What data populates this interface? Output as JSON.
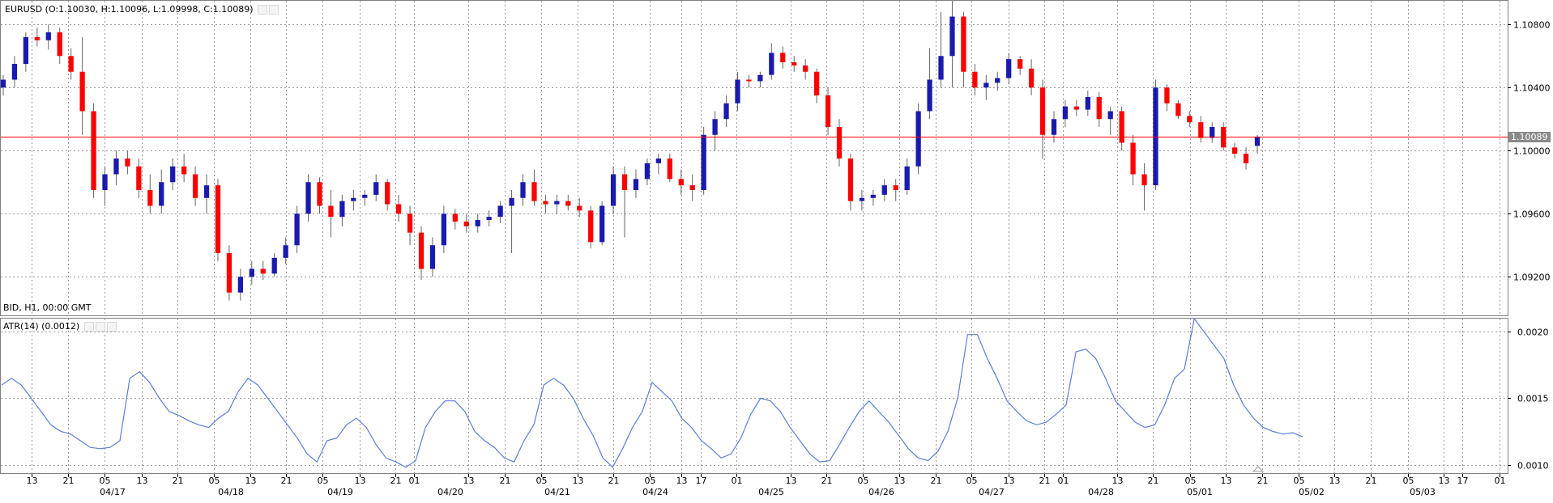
{
  "main_header": {
    "symbol": "EURUSD",
    "ohlc": "(O:1.10030, H:1.10096, L:1.09998, C:1.10089)"
  },
  "main_footer": "BID, H1, 00:00 GMT",
  "current_price_label": "1.10089",
  "indicator_header": "ATR(14) (0.0012)",
  "colors": {
    "up": "#1a1aaf",
    "down": "#ff0000",
    "atr": "#5b7fd6",
    "price_line": "#ff0000",
    "grid": "#9a9a9a"
  },
  "chart_data": [
    {
      "type": "candlestick",
      "title": "EURUSD (O:1.10030, H:1.10096, L:1.09998, C:1.10089)",
      "ylim": [
        1.0895,
        1.1095
      ],
      "y_ticks": [
        "1.10800",
        "1.10400",
        "1.10000",
        "1.09600",
        "1.09200"
      ],
      "current_price": 1.10089,
      "candles": [
        {
          "o": 1.104,
          "h": 1.1048,
          "l": 1.1035,
          "c": 1.1045
        },
        {
          "o": 1.1045,
          "h": 1.106,
          "l": 1.104,
          "c": 1.1055
        },
        {
          "o": 1.1055,
          "h": 1.1075,
          "l": 1.105,
          "c": 1.1072
        },
        {
          "o": 1.1072,
          "h": 1.1078,
          "l": 1.1066,
          "c": 1.107
        },
        {
          "o": 1.107,
          "h": 1.108,
          "l": 1.1064,
          "c": 1.1075
        },
        {
          "o": 1.1075,
          "h": 1.1078,
          "l": 1.1055,
          "c": 1.106
        },
        {
          "o": 1.106,
          "h": 1.1065,
          "l": 1.1045,
          "c": 1.105
        },
        {
          "o": 1.105,
          "h": 1.1072,
          "l": 1.101,
          "c": 1.1025
        },
        {
          "o": 1.1025,
          "h": 1.103,
          "l": 1.097,
          "c": 1.0975
        },
        {
          "o": 1.0975,
          "h": 1.099,
          "l": 1.0965,
          "c": 1.0985
        },
        {
          "o": 1.0985,
          "h": 1.1,
          "l": 1.0978,
          "c": 1.0995
        },
        {
          "o": 1.0995,
          "h": 1.1,
          "l": 1.0985,
          "c": 1.099
        },
        {
          "o": 1.099,
          "h": 1.0995,
          "l": 1.097,
          "c": 1.0975
        },
        {
          "o": 1.0975,
          "h": 1.0985,
          "l": 1.096,
          "c": 1.0965
        },
        {
          "o": 1.0965,
          "h": 1.0988,
          "l": 1.096,
          "c": 1.098
        },
        {
          "o": 1.098,
          "h": 1.0995,
          "l": 1.0975,
          "c": 1.099
        },
        {
          "o": 1.099,
          "h": 1.0998,
          "l": 1.098,
          "c": 1.0985
        },
        {
          "o": 1.0985,
          "h": 1.099,
          "l": 1.0965,
          "c": 1.097
        },
        {
          "o": 1.097,
          "h": 1.0985,
          "l": 1.096,
          "c": 1.0978
        },
        {
          "o": 1.0978,
          "h": 1.0982,
          "l": 1.093,
          "c": 1.0935
        },
        {
          "o": 1.0935,
          "h": 1.094,
          "l": 1.0905,
          "c": 1.091
        },
        {
          "o": 1.091,
          "h": 1.0925,
          "l": 1.0905,
          "c": 1.092
        },
        {
          "o": 1.092,
          "h": 1.093,
          "l": 1.0915,
          "c": 1.0925
        },
        {
          "o": 1.0925,
          "h": 1.093,
          "l": 1.0918,
          "c": 1.0922
        },
        {
          "o": 1.0922,
          "h": 1.0935,
          "l": 1.092,
          "c": 1.0932
        },
        {
          "o": 1.0932,
          "h": 1.0945,
          "l": 1.0928,
          "c": 1.094
        },
        {
          "o": 1.094,
          "h": 1.0965,
          "l": 1.0935,
          "c": 1.096
        },
        {
          "o": 1.096,
          "h": 1.0985,
          "l": 1.0955,
          "c": 1.098
        },
        {
          "o": 1.098,
          "h": 1.0983,
          "l": 1.096,
          "c": 1.0965
        },
        {
          "o": 1.0965,
          "h": 1.0975,
          "l": 1.0945,
          "c": 1.0958
        },
        {
          "o": 1.0958,
          "h": 1.0972,
          "l": 1.0952,
          "c": 1.0968
        },
        {
          "o": 1.0968,
          "h": 1.0975,
          "l": 1.0962,
          "c": 1.097
        },
        {
          "o": 1.097,
          "h": 1.0975,
          "l": 1.0965,
          "c": 1.0972
        },
        {
          "o": 1.0972,
          "h": 1.0985,
          "l": 1.0968,
          "c": 1.098
        },
        {
          "o": 1.098,
          "h": 1.0982,
          "l": 1.0962,
          "c": 1.0966
        },
        {
          "o": 1.0966,
          "h": 1.0972,
          "l": 1.0955,
          "c": 1.096
        },
        {
          "o": 1.096,
          "h": 1.0965,
          "l": 1.094,
          "c": 1.0948
        },
        {
          "o": 1.0948,
          "h": 1.0952,
          "l": 1.0918,
          "c": 1.0925
        },
        {
          "o": 1.0925,
          "h": 1.0945,
          "l": 1.092,
          "c": 1.094
        },
        {
          "o": 1.094,
          "h": 1.0965,
          "l": 1.0935,
          "c": 1.096
        },
        {
          "o": 1.096,
          "h": 1.0963,
          "l": 1.095,
          "c": 1.0955
        },
        {
          "o": 1.0955,
          "h": 1.096,
          "l": 1.0948,
          "c": 1.0952
        },
        {
          "o": 1.0952,
          "h": 1.096,
          "l": 1.0948,
          "c": 1.0956
        },
        {
          "o": 1.0956,
          "h": 1.0962,
          "l": 1.0952,
          "c": 1.0958
        },
        {
          "o": 1.0958,
          "h": 1.0968,
          "l": 1.0954,
          "c": 1.0965
        },
        {
          "o": 1.0965,
          "h": 1.0975,
          "l": 1.0935,
          "c": 1.097
        },
        {
          "o": 1.097,
          "h": 1.0985,
          "l": 1.0965,
          "c": 1.098
        },
        {
          "o": 1.098,
          "h": 1.0988,
          "l": 1.0965,
          "c": 1.0968
        },
        {
          "o": 1.0968,
          "h": 1.0972,
          "l": 1.096,
          "c": 1.0966
        },
        {
          "o": 1.0966,
          "h": 1.0972,
          "l": 1.096,
          "c": 1.0968
        },
        {
          "o": 1.0968,
          "h": 1.0972,
          "l": 1.0962,
          "c": 1.0965
        },
        {
          "o": 1.0965,
          "h": 1.097,
          "l": 1.0958,
          "c": 1.0962
        },
        {
          "o": 1.0962,
          "h": 1.0965,
          "l": 1.0938,
          "c": 1.0942
        },
        {
          "o": 1.0942,
          "h": 1.0968,
          "l": 1.094,
          "c": 1.0965
        },
        {
          "o": 1.0965,
          "h": 1.099,
          "l": 1.096,
          "c": 1.0985
        },
        {
          "o": 1.0985,
          "h": 1.099,
          "l": 1.0945,
          "c": 1.0975
        },
        {
          "o": 1.0975,
          "h": 1.0988,
          "l": 1.097,
          "c": 1.0982
        },
        {
          "o": 1.0982,
          "h": 1.0995,
          "l": 1.0978,
          "c": 1.0992
        },
        {
          "o": 1.0992,
          "h": 1.0998,
          "l": 1.0985,
          "c": 1.0995
        },
        {
          "o": 1.0995,
          "h": 1.0998,
          "l": 1.098,
          "c": 1.0982
        },
        {
          "o": 1.0982,
          "h": 1.0988,
          "l": 1.0972,
          "c": 1.0978
        },
        {
          "o": 1.0978,
          "h": 1.0985,
          "l": 1.0968,
          "c": 1.0975
        },
        {
          "o": 1.0975,
          "h": 1.1015,
          "l": 1.0972,
          "c": 1.101
        },
        {
          "o": 1.101,
          "h": 1.1025,
          "l": 1.1,
          "c": 1.102
        },
        {
          "o": 1.102,
          "h": 1.1035,
          "l": 1.1015,
          "c": 1.103
        },
        {
          "o": 1.103,
          "h": 1.105,
          "l": 1.1025,
          "c": 1.1045
        },
        {
          "o": 1.1045,
          "h": 1.1048,
          "l": 1.104,
          "c": 1.1044
        },
        {
          "o": 1.1044,
          "h": 1.105,
          "l": 1.104,
          "c": 1.1048
        },
        {
          "o": 1.1048,
          "h": 1.1068,
          "l": 1.1045,
          "c": 1.1062
        },
        {
          "o": 1.1062,
          "h": 1.1066,
          "l": 1.1052,
          "c": 1.1056
        },
        {
          "o": 1.1056,
          "h": 1.106,
          "l": 1.105,
          "c": 1.1054
        },
        {
          "o": 1.1054,
          "h": 1.1058,
          "l": 1.1045,
          "c": 1.105
        },
        {
          "o": 1.105,
          "h": 1.1052,
          "l": 1.103,
          "c": 1.1035
        },
        {
          "o": 1.1035,
          "h": 1.104,
          "l": 1.101,
          "c": 1.1015
        },
        {
          "o": 1.1015,
          "h": 1.102,
          "l": 1.099,
          "c": 1.0995
        },
        {
          "o": 1.0995,
          "h": 1.0998,
          "l": 1.0962,
          "c": 1.0968
        },
        {
          "o": 1.0968,
          "h": 1.0975,
          "l": 1.0962,
          "c": 1.097
        },
        {
          "o": 1.097,
          "h": 1.0975,
          "l": 1.0965,
          "c": 1.0972
        },
        {
          "o": 1.0972,
          "h": 1.0982,
          "l": 1.0968,
          "c": 1.0978
        },
        {
          "o": 1.0978,
          "h": 1.0982,
          "l": 1.0968,
          "c": 1.0975
        },
        {
          "o": 1.0975,
          "h": 1.0995,
          "l": 1.0972,
          "c": 1.099
        },
        {
          "o": 1.099,
          "h": 1.103,
          "l": 1.0985,
          "c": 1.1025
        },
        {
          "o": 1.1025,
          "h": 1.1065,
          "l": 1.102,
          "c": 1.1045
        },
        {
          "o": 1.1045,
          "h": 1.1088,
          "l": 1.104,
          "c": 1.106
        },
        {
          "o": 1.106,
          "h": 1.1095,
          "l": 1.104,
          "c": 1.1085
        },
        {
          "o": 1.1085,
          "h": 1.1088,
          "l": 1.104,
          "c": 1.105
        },
        {
          "o": 1.105,
          "h": 1.1055,
          "l": 1.1035,
          "c": 1.104
        },
        {
          "o": 1.104,
          "h": 1.1048,
          "l": 1.1032,
          "c": 1.1043
        },
        {
          "o": 1.1043,
          "h": 1.105,
          "l": 1.1038,
          "c": 1.1046
        },
        {
          "o": 1.1046,
          "h": 1.1062,
          "l": 1.1042,
          "c": 1.1058
        },
        {
          "o": 1.1058,
          "h": 1.106,
          "l": 1.1048,
          "c": 1.1052
        },
        {
          "o": 1.1052,
          "h": 1.1058,
          "l": 1.1035,
          "c": 1.104
        },
        {
          "o": 1.104,
          "h": 1.1045,
          "l": 1.0995,
          "c": 1.101
        },
        {
          "o": 1.101,
          "h": 1.1025,
          "l": 1.1005,
          "c": 1.102
        },
        {
          "o": 1.102,
          "h": 1.1032,
          "l": 1.1015,
          "c": 1.1028
        },
        {
          "o": 1.1028,
          "h": 1.1032,
          "l": 1.1022,
          "c": 1.1026
        },
        {
          "o": 1.1026,
          "h": 1.1038,
          "l": 1.1022,
          "c": 1.1034
        },
        {
          "o": 1.1034,
          "h": 1.1037,
          "l": 1.1015,
          "c": 1.102
        },
        {
          "o": 1.102,
          "h": 1.1028,
          "l": 1.101,
          "c": 1.1025
        },
        {
          "o": 1.1025,
          "h": 1.1028,
          "l": 1.1,
          "c": 1.1005
        },
        {
          "o": 1.1005,
          "h": 1.101,
          "l": 1.0978,
          "c": 1.0985
        },
        {
          "o": 1.0985,
          "h": 1.0992,
          "l": 1.0962,
          "c": 1.0978
        },
        {
          "o": 1.0978,
          "h": 1.1045,
          "l": 1.0975,
          "c": 1.104
        },
        {
          "o": 1.104,
          "h": 1.1042,
          "l": 1.1025,
          "c": 1.103
        },
        {
          "o": 1.103,
          "h": 1.1032,
          "l": 1.102,
          "c": 1.1022
        },
        {
          "o": 1.1022,
          "h": 1.1025,
          "l": 1.1015,
          "c": 1.1018
        },
        {
          "o": 1.1018,
          "h": 1.1022,
          "l": 1.1005,
          "c": 1.1008
        },
        {
          "o": 1.1008,
          "h": 1.1018,
          "l": 1.1005,
          "c": 1.1015
        },
        {
          "o": 1.1015,
          "h": 1.1018,
          "l": 1.1,
          "c": 1.1002
        },
        {
          "o": 1.1002,
          "h": 1.1005,
          "l": 1.0995,
          "c": 1.0998
        },
        {
          "o": 1.0998,
          "h": 1.1002,
          "l": 1.0988,
          "c": 1.0992
        },
        {
          "o": 1.1003,
          "h": 1.101,
          "l": 1.0998,
          "c": 1.10089
        }
      ]
    },
    {
      "type": "line",
      "title": "ATR(14) (0.0012)",
      "ylim": [
        0.00093,
        0.0021
      ],
      "y_ticks": [
        "0.0020",
        "0.0015",
        "0.0010"
      ],
      "series": [
        {
          "values": [
            0.0016,
            0.00165,
            0.0016,
            0.0015,
            0.0014,
            0.0013,
            0.00125,
            0.00123,
            0.00118,
            0.00113,
            0.00112,
            0.00113,
            0.00118,
            0.00165,
            0.0017,
            0.00162,
            0.0015,
            0.0014,
            0.00137,
            0.00133,
            0.0013,
            0.00128,
            0.00135,
            0.0014,
            0.00155,
            0.00165,
            0.0016,
            0.0015,
            0.0014,
            0.0013,
            0.0012,
            0.00108,
            0.00102,
            0.00118,
            0.0012,
            0.0013,
            0.00135,
            0.00128,
            0.00115,
            0.00105,
            0.00102,
            0.00098,
            0.00103,
            0.00128,
            0.0014,
            0.00148,
            0.00148,
            0.0014,
            0.00125,
            0.00118,
            0.00113,
            0.00105,
            0.00102,
            0.00118,
            0.0013,
            0.0016,
            0.00165,
            0.0016,
            0.0015,
            0.00135,
            0.00122,
            0.00105,
            0.00098,
            0.00112,
            0.00128,
            0.0014,
            0.00162,
            0.00155,
            0.00148,
            0.00135,
            0.00128,
            0.00118,
            0.00112,
            0.00105,
            0.00108,
            0.0012,
            0.00138,
            0.0015,
            0.00148,
            0.0014,
            0.00128,
            0.00118,
            0.00108,
            0.00102,
            0.00103,
            0.00115,
            0.00128,
            0.0014,
            0.00148,
            0.0014,
            0.00132,
            0.00122,
            0.00112,
            0.00105,
            0.00103,
            0.0011,
            0.00125,
            0.0015,
            0.00198,
            0.00198,
            0.0018,
            0.00165,
            0.00148,
            0.0014,
            0.00133,
            0.0013,
            0.00132,
            0.00138,
            0.00145,
            0.00185,
            0.00187,
            0.0018,
            0.00165,
            0.00148,
            0.0014,
            0.00132,
            0.00128,
            0.0013,
            0.00145,
            0.00165,
            0.00172,
            0.0021,
            0.002,
            0.0019,
            0.0018,
            0.0016,
            0.00145,
            0.00135,
            0.00128,
            0.00125,
            0.00123,
            0.00124,
            0.00121
          ]
        }
      ]
    }
  ],
  "x_axis": {
    "hours": [
      {
        "label": "13",
        "pos": 0.0165
      },
      {
        "label": "21",
        "pos": 0.041
      },
      {
        "label": "05",
        "pos": 0.0655
      },
      {
        "label": "13",
        "pos": 0.09
      },
      {
        "label": "21",
        "pos": 0.114
      },
      {
        "label": "05",
        "pos": 0.1385
      },
      {
        "label": "13",
        "pos": 0.1625
      },
      {
        "label": "21",
        "pos": 0.1865
      },
      {
        "label": "05",
        "pos": 0.211
      },
      {
        "label": "13",
        "pos": 0.2355
      },
      {
        "label": "21",
        "pos": 0.2595
      },
      {
        "label": "01",
        "pos": 0.272
      },
      {
        "label": "13",
        "pos": 0.308
      },
      {
        "label": "21",
        "pos": 0.3325
      },
      {
        "label": "05",
        "pos": 0.3565
      },
      {
        "label": "13",
        "pos": 0.381
      },
      {
        "label": "21",
        "pos": 0.405
      },
      {
        "label": "05",
        "pos": 0.429
      },
      {
        "label": "13",
        "pos": 0.4505
      },
      {
        "label": "17",
        "pos": 0.463
      },
      {
        "label": "01",
        "pos": 0.487
      },
      {
        "label": "13",
        "pos": 0.523
      },
      {
        "label": "21",
        "pos": 0.547
      },
      {
        "label": "05",
        "pos": 0.5715
      },
      {
        "label": "13",
        "pos": 0.5955
      },
      {
        "label": "21",
        "pos": 0.62
      },
      {
        "label": "05",
        "pos": 0.644
      },
      {
        "label": "13",
        "pos": 0.6685
      },
      {
        "label": "21",
        "pos": 0.6925
      },
      {
        "label": "01",
        "pos": 0.705
      },
      {
        "label": "13",
        "pos": 0.741
      },
      {
        "label": "21",
        "pos": 0.765
      },
      {
        "label": "05",
        "pos": 0.7895
      },
      {
        "label": "13",
        "pos": 0.8135
      },
      {
        "label": "21",
        "pos": 0.838
      },
      {
        "label": "05",
        "pos": 0.862
      },
      {
        "label": "13",
        "pos": 0.886
      },
      {
        "label": "21",
        "pos": 0.9105
      },
      {
        "label": "05",
        "pos": 0.935
      },
      {
        "label": "13",
        "pos": 0.959
      },
      {
        "label": "17",
        "pos": 0.9715
      },
      {
        "label": "01",
        "pos": 0.996
      }
    ],
    "dates": [
      {
        "label": "04/17",
        "pos": 0.071
      },
      {
        "label": "04/18",
        "pos": 0.1495
      },
      {
        "label": "04/19",
        "pos": 0.2225
      },
      {
        "label": "04/20",
        "pos": 0.296
      },
      {
        "label": "04/21",
        "pos": 0.3675
      },
      {
        "label": "04/24",
        "pos": 0.433
      },
      {
        "label": "04/25",
        "pos": 0.51
      },
      {
        "label": "04/26",
        "pos": 0.584
      },
      {
        "label": "04/27",
        "pos": 0.6575
      },
      {
        "label": "04/28",
        "pos": 0.73
      },
      {
        "label": "05/01",
        "pos": 0.796
      },
      {
        "label": "05/02",
        "pos": 0.871
      },
      {
        "label": "05/03",
        "pos": 0.945
      }
    ]
  }
}
